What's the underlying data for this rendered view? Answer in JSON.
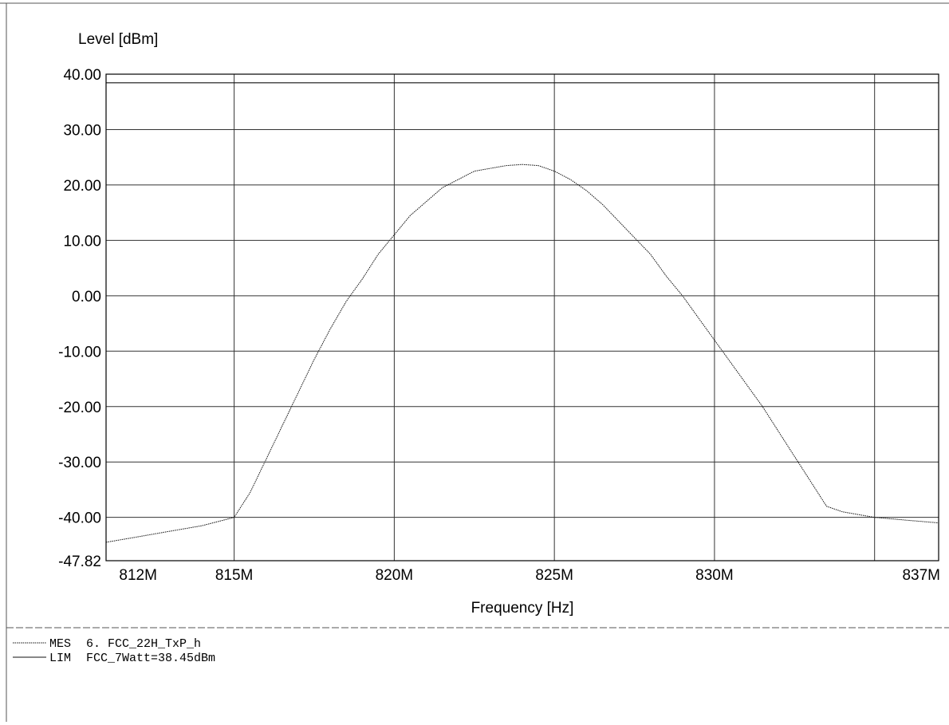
{
  "chart_data": {
    "type": "line",
    "title": "",
    "xlabel": "Frequency [Hz]",
    "ylabel": "Level [dBm]",
    "xlim": [
      811000000,
      837000000
    ],
    "ylim": [
      -47.82,
      40.0
    ],
    "y_ticks": [
      40.0,
      30.0,
      20.0,
      10.0,
      0.0,
      -10.0,
      -20.0,
      -30.0,
      -40.0,
      -47.82
    ],
    "y_tick_labels": [
      "40.00",
      "30.00",
      "20.00",
      "10.00",
      "0.00",
      "-10.00",
      "-20.00",
      "-30.00",
      "-40.00",
      "-47.82"
    ],
    "x_ticks": [
      812000000,
      815000000,
      820000000,
      825000000,
      830000000,
      837000000
    ],
    "x_tick_labels": [
      "812M",
      "815M",
      "820M",
      "825M",
      "830M",
      "837M"
    ],
    "x_gridlines": [
      815000000,
      820000000,
      825000000,
      830000000,
      835000000
    ],
    "grid": true,
    "series": [
      {
        "name": "MES",
        "style": "dotted",
        "x": [
          811000000,
          812000000,
          813000000,
          814000000,
          815000000,
          815500000,
          816000000,
          816500000,
          817000000,
          817500000,
          818000000,
          818500000,
          819000000,
          819500000,
          820000000,
          820500000,
          821000000,
          821500000,
          822000000,
          822500000,
          823000000,
          823500000,
          824000000,
          824500000,
          825000000,
          825500000,
          826000000,
          826500000,
          827000000,
          827500000,
          828000000,
          828500000,
          829000000,
          829500000,
          830000000,
          830500000,
          831000000,
          831500000,
          832000000,
          832500000,
          833000000,
          833500000,
          834000000,
          834500000,
          835000000,
          836000000,
          837000000
        ],
        "y": [
          -44.5,
          -43.5,
          -42.5,
          -41.5,
          -40.0,
          -35.5,
          -29.5,
          -23.5,
          -17.5,
          -11.5,
          -6.0,
          -1.0,
          3.0,
          7.5,
          11.0,
          14.5,
          17.0,
          19.5,
          21.0,
          22.5,
          23.0,
          23.5,
          23.7,
          23.5,
          22.5,
          21.0,
          19.0,
          16.5,
          13.5,
          10.5,
          7.5,
          3.5,
          0.0,
          -4.0,
          -8.0,
          -12.0,
          -16.0,
          -20.0,
          -24.5,
          -29.0,
          -33.5,
          -38.0,
          -39.0,
          -39.5,
          -40.0,
          -40.5,
          -41.0
        ]
      },
      {
        "name": "LIM",
        "style": "solid",
        "x": [
          811000000,
          837000000
        ],
        "y": [
          38.45,
          38.45
        ]
      }
    ],
    "legend": [
      {
        "key": "MES",
        "text": "6. FCC_22H_TxP_h"
      },
      {
        "key": "LIM",
        "text": "FCC_7Watt=38.45dBm"
      }
    ]
  }
}
